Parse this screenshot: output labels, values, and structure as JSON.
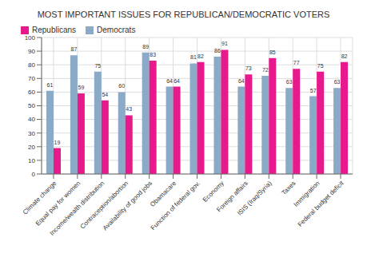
{
  "chart_data": {
    "type": "bar",
    "title": "MOST IMPORTANT ISSUES FOR REPUBLICAN/DEMOCRATIC VOTERS",
    "categories": [
      "Climate change",
      "Equal pay for women",
      "Income/wealth distribution",
      "Contraception/abortion",
      "Availability of good jobs",
      "Obamacare",
      "Function of federal gov.",
      "Economy",
      "Foreign affairs",
      "ISIS (Iraq/Syria)",
      "Taxes",
      "Immigration",
      "Federal budget deficit"
    ],
    "series": [
      {
        "name": "Democrats",
        "color": "#8BAAC8",
        "values": [
          61,
          87,
          75,
          60,
          89,
          64,
          81,
          86,
          64,
          72,
          63,
          57,
          63
        ]
      },
      {
        "name": "Republicans",
        "color": "#E8198B",
        "values": [
          19,
          59,
          54,
          43,
          83,
          64,
          82,
          91,
          73,
          85,
          77,
          75,
          82
        ]
      }
    ],
    "ylim": [
      0,
      100
    ],
    "yticks": [
      0,
      10,
      20,
      30,
      40,
      50,
      60,
      70,
      80,
      90,
      100
    ],
    "grid": true,
    "legend": "upper left",
    "data_labels": true
  }
}
